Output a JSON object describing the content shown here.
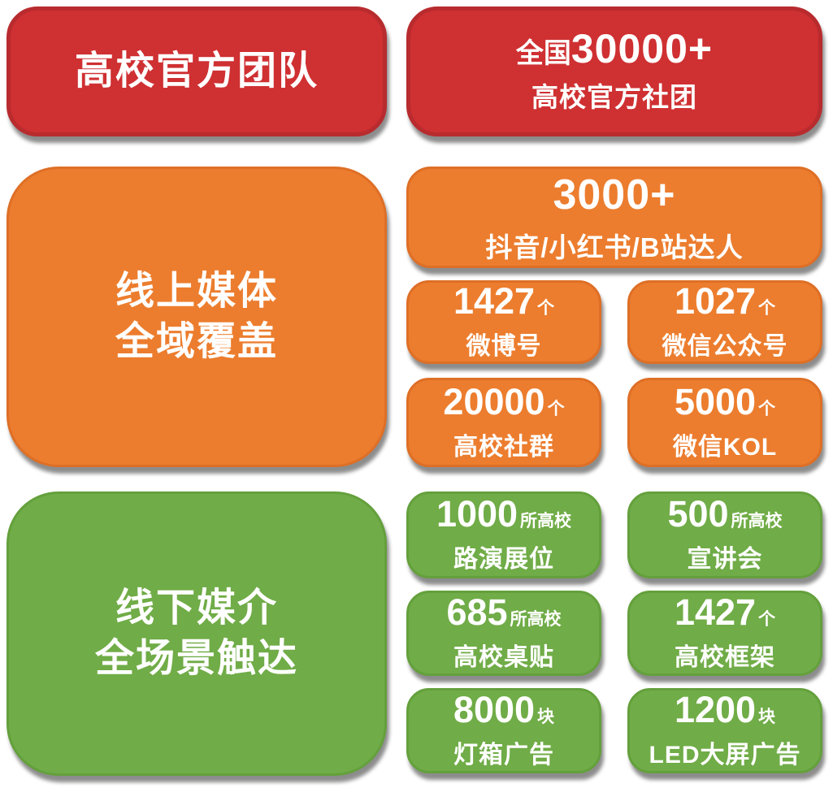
{
  "colors": {
    "red": "#CF3032",
    "red_border": "#B82B2E",
    "orange": "#EC7D2E",
    "orange_border": "#DE6F26",
    "green": "#70AC47",
    "green_border": "#64A03C",
    "text": "#FFFFFF",
    "background": "#FFFFFF"
  },
  "header": {
    "left_title": "高校官方团队",
    "right": {
      "prefix": "全国",
      "number": "30000+",
      "label": "高校官方社团"
    }
  },
  "online": {
    "title_line1": "线上媒体",
    "title_line2": "全域覆盖",
    "feature": {
      "number": "3000+",
      "label": "抖音/小红书/B站达人"
    },
    "stats": [
      {
        "number": "1427",
        "unit": "个",
        "label": "微博号"
      },
      {
        "number": "1027",
        "unit": "个",
        "label": "微信公众号"
      },
      {
        "number": "20000",
        "unit": "个",
        "label": "高校社群"
      },
      {
        "number": "5000",
        "unit": "个",
        "label": "微信KOL"
      }
    ]
  },
  "offline": {
    "title_line1": "线下媒介",
    "title_line2": "全场景触达",
    "stats": [
      {
        "number": "1000",
        "unit": "所高校",
        "label": "路演展位"
      },
      {
        "number": "500",
        "unit": "所高校",
        "label": "宣讲会"
      },
      {
        "number": "685",
        "unit": "所高校",
        "label": "高校桌贴"
      },
      {
        "number": "1427",
        "unit": "个",
        "label": "高校框架"
      },
      {
        "number": "8000",
        "unit": "块",
        "label": "灯箱广告"
      },
      {
        "number": "1200",
        "unit": "块",
        "label": "LED大屏广告"
      }
    ]
  }
}
